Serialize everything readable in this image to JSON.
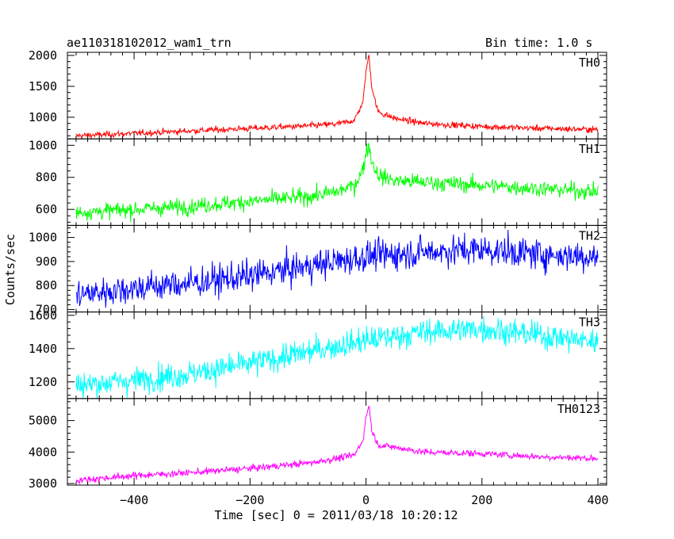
{
  "header": {
    "title": "ae110318102012_wam1_trn",
    "bin_time": "Bin time: 1.0 s"
  },
  "chart_data": {
    "type": "line",
    "title": "ae110318102012_wam1_trn",
    "subtitle": "Bin time: 1.0 s",
    "xlabel": "Time [sec] 0 = 2011/03/18 10:20:12",
    "ylabel": "Counts/sec",
    "xlim": [
      -515,
      415
    ],
    "x_ticks": [
      -400,
      -200,
      0,
      200,
      400
    ],
    "x_tick_labels": [
      "−400",
      "−200",
      "0",
      "200",
      "400"
    ],
    "grid": false,
    "panels": [
      {
        "name": "TH0",
        "color": "#ff0000",
        "ylim": [
          650,
          2050
        ],
        "y_ticks": [
          1000,
          1500,
          2000
        ],
        "x": [
          -500,
          -400,
          -300,
          -200,
          -100,
          -50,
          -20,
          -5,
          0,
          5,
          10,
          20,
          30,
          50,
          100,
          200,
          300,
          400
        ],
        "y": [
          700,
          740,
          780,
          820,
          860,
          890,
          950,
          1250,
          1750,
          2000,
          1500,
          1100,
          1050,
          980,
          900,
          850,
          820,
          800
        ],
        "noise": 35
      },
      {
        "name": "TH1",
        "color": "#00ff00",
        "ylim": [
          500,
          1040
        ],
        "y_ticks": [
          600,
          800,
          1000
        ],
        "x": [
          -500,
          -400,
          -300,
          -200,
          -100,
          -50,
          -20,
          -5,
          0,
          5,
          10,
          20,
          30,
          50,
          100,
          200,
          300,
          400
        ],
        "y": [
          580,
          600,
          620,
          650,
          680,
          710,
          750,
          850,
          960,
          1000,
          900,
          820,
          800,
          780,
          770,
          750,
          730,
          710
        ],
        "noise": 35
      },
      {
        "name": "TH2",
        "color": "#0000ff",
        "ylim": [
          690,
          1050
        ],
        "y_ticks": [
          700,
          800,
          900,
          1000
        ],
        "x": [
          -500,
          -400,
          -300,
          -200,
          -100,
          0,
          100,
          200,
          300,
          400
        ],
        "y": [
          760,
          790,
          810,
          840,
          880,
          920,
          940,
          950,
          930,
          920
        ],
        "noise": 45
      },
      {
        "name": "TH3",
        "color": "#00ffff",
        "ylim": [
          1100,
          1620
        ],
        "y_ticks": [
          1200,
          1400,
          1600
        ],
        "x": [
          -500,
          -400,
          -300,
          -200,
          -100,
          0,
          100,
          200,
          300,
          400
        ],
        "y": [
          1180,
          1210,
          1250,
          1310,
          1380,
          1450,
          1500,
          1520,
          1480,
          1440
        ],
        "noise": 55
      },
      {
        "name": "TH0123",
        "color": "#ff00ff",
        "ylim": [
          2950,
          5700
        ],
        "y_ticks": [
          3000,
          4000,
          5000
        ],
        "x": [
          -500,
          -400,
          -300,
          -200,
          -100,
          -50,
          -20,
          -5,
          0,
          5,
          10,
          20,
          30,
          50,
          100,
          200,
          300,
          400
        ],
        "y": [
          3100,
          3250,
          3350,
          3480,
          3650,
          3800,
          3900,
          4400,
          5100,
          5500,
          4700,
          4250,
          4200,
          4150,
          4000,
          3950,
          3850,
          3800
        ],
        "noise": 75
      }
    ]
  }
}
